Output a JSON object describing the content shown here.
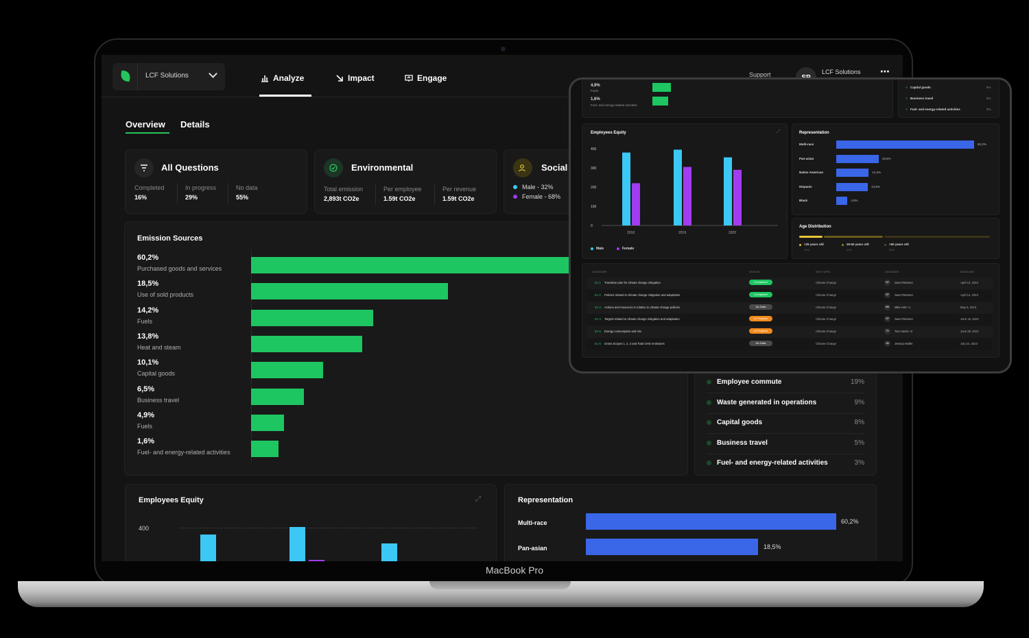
{
  "device": {
    "label": "MacBook Pro"
  },
  "header": {
    "org_name": "LCF Solutions",
    "nav": [
      {
        "label": "Analyze"
      },
      {
        "label": "Impact"
      },
      {
        "label": "Engage"
      }
    ],
    "support": "Support",
    "user_initials": "SP",
    "user_org": "LCF Solutions"
  },
  "tabs": [
    {
      "label": "Overview"
    },
    {
      "label": "Details"
    }
  ],
  "summary": {
    "all_questions": {
      "title": "All Questions",
      "stats": [
        {
          "label": "Completed",
          "value": "16%"
        },
        {
          "label": "In progress",
          "value": "29%"
        },
        {
          "label": "No data",
          "value": "55%"
        }
      ]
    },
    "environmental": {
      "title": "Environmental",
      "stats": [
        {
          "label": "Total emission",
          "value": "2,893t CO2e"
        },
        {
          "label": "Per employee",
          "value": "1.59t CO2e"
        },
        {
          "label": "Per revenue",
          "value": "1.59t CO2e"
        }
      ]
    },
    "social": {
      "title": "Social",
      "legend": [
        "Male - 32%",
        "Female - 68%"
      ]
    }
  },
  "emission_sources": {
    "title": "Emission Sources",
    "items": [
      {
        "pct": "60,2%",
        "label": "Purchased goods and services",
        "value": 60.2
      },
      {
        "pct": "18,5%",
        "label": "Use of sold products",
        "value": 18.5
      },
      {
        "pct": "14,2%",
        "label": "Fuels",
        "value": 14.2
      },
      {
        "pct": "13,8%",
        "label": "Heat and steam",
        "value": 13.8
      },
      {
        "pct": "10,1%",
        "label": "Capital goods",
        "value": 10.1
      },
      {
        "pct": "6,5%",
        "label": "Business travel",
        "value": 6.5
      },
      {
        "pct": "4,9%",
        "label": "Fuels",
        "value": 4.9
      },
      {
        "pct": "1,6%",
        "label": "Fuel- and energy-related activities",
        "value": 1.6
      }
    ]
  },
  "category_list": [
    {
      "label": "Employee commute",
      "pct": "19%"
    },
    {
      "label": "Waste generated in operations",
      "pct": "9%"
    },
    {
      "label": "Capital goods",
      "pct": "8%"
    },
    {
      "label": "Business travel",
      "pct": "5%"
    },
    {
      "label": "Fuel- and energy-related activities",
      "pct": "3%"
    }
  ],
  "employees_equity": {
    "title": "Employees Equity",
    "y_tick": "400"
  },
  "representation": {
    "title": "Representation",
    "items": [
      {
        "label": "Multi-race",
        "pct": "60,2%",
        "value": 60.2
      },
      {
        "label": "Pan-asian",
        "pct": "18,5%",
        "value": 18.5
      }
    ]
  },
  "tablet": {
    "top_items": [
      {
        "pct": "4,9%",
        "label": "Fuels"
      },
      {
        "pct": "1,6%",
        "label": "Fuel- and energy-related activities"
      }
    ],
    "top_list": [
      {
        "label": "Capital goods",
        "pct": "8%"
      },
      {
        "label": "Business travel",
        "pct": "5%"
      },
      {
        "label": "Fuel- and energy-related activities",
        "pct": "3%"
      }
    ],
    "equity": {
      "title": "Employees Equity",
      "y_ticks": [
        "400",
        "300",
        "200",
        "100",
        "0"
      ],
      "legend": [
        "Male",
        "Female"
      ]
    },
    "representation": {
      "title": "Representation",
      "items": [
        {
          "label": "Multi-race",
          "pct": "60,2%",
          "value": 60.2
        },
        {
          "label": "Pan-asian",
          "pct": "18,5%",
          "value": 18.5
        },
        {
          "label": "Native American",
          "pct": "14,2%",
          "value": 14.2
        },
        {
          "label": "Hispanic",
          "pct": "13,8%",
          "value": 13.8
        },
        {
          "label": "Black",
          "pct": "4,9%",
          "value": 4.9
        }
      ]
    },
    "age": {
      "title": "Age Distribution",
      "items": [
        {
          "label": "<25 years old",
          "sub": "19%"
        },
        {
          "label": "25-50 years old",
          "sub": "22%"
        },
        {
          "label": ">50 years old",
          "sub": "55%"
        }
      ]
    },
    "table": {
      "headers": [
        "CATEGORY",
        "STATUS",
        "ESG TOPIC",
        "ASSIGNEE",
        "DEADLINE"
      ],
      "rows": [
        {
          "code": "E1-1",
          "name": "Transition plan for climate change mitigation",
          "status": "Completed",
          "topic": "Climate Change",
          "initials": "SP",
          "assignee": "Sara Peterson",
          "deadline": "April 10, 2023"
        },
        {
          "code": "E1-2",
          "name": "Policies related to climate change mitigation and adaptation",
          "status": "Completed",
          "topic": "Climate Change",
          "initials": "SP",
          "assignee": "Sara Peterson",
          "deadline": "April 12, 2023"
        },
        {
          "code": "E1-3",
          "name": "Actions and resources in relation to climate change policies",
          "status": "No Data",
          "topic": "Climate Change",
          "initials": "MH",
          "assignee": "Mike Holt +1",
          "deadline": "May 5, 2023"
        },
        {
          "code": "E1-4",
          "name": "Targets related to climate change mitigation and adaptation",
          "status": "In Progress",
          "topic": "Climate Change",
          "initials": "SP",
          "assignee": "Sara Peterson",
          "deadline": "June 16, 2023"
        },
        {
          "code": "E1-5",
          "name": "Energy consumption and mix",
          "status": "In Progress",
          "topic": "Climate Change",
          "initials": "TH",
          "assignee": "Tom Harris +2",
          "deadline": "June 28, 2023"
        },
        {
          "code": "E1-6",
          "name": "Gross Scopes 1, 2, 3 and Total GHG emissions",
          "status": "No Data",
          "topic": "Climate Change",
          "initials": "JM",
          "assignee": "Jessica Muller",
          "deadline": "July 24, 2023"
        }
      ]
    }
  },
  "chart_data": [
    {
      "type": "bar",
      "title": "Employees Equity",
      "categories": [
        "2018",
        "2019",
        "2020"
      ],
      "series": [
        {
          "name": "Male",
          "values": [
            380,
            395,
            355
          ]
        },
        {
          "name": "Female",
          "values": [
            220,
            305,
            290
          ]
        }
      ],
      "ylim": [
        0,
        400
      ]
    },
    {
      "type": "bar",
      "title": "Representation",
      "categories": [
        "Multi-race",
        "Pan-asian",
        "Native American",
        "Hispanic",
        "Black"
      ],
      "values": [
        60.2,
        18.5,
        14.2,
        13.8,
        4.9
      ]
    }
  ],
  "colors": {
    "accent_green": "#1ec662",
    "male": "#3cc8f5",
    "female": "#a23cf0",
    "blue_bar": "#3a66e8",
    "in_progress": "#f28a1d",
    "no_data": "#4a4a4a"
  }
}
